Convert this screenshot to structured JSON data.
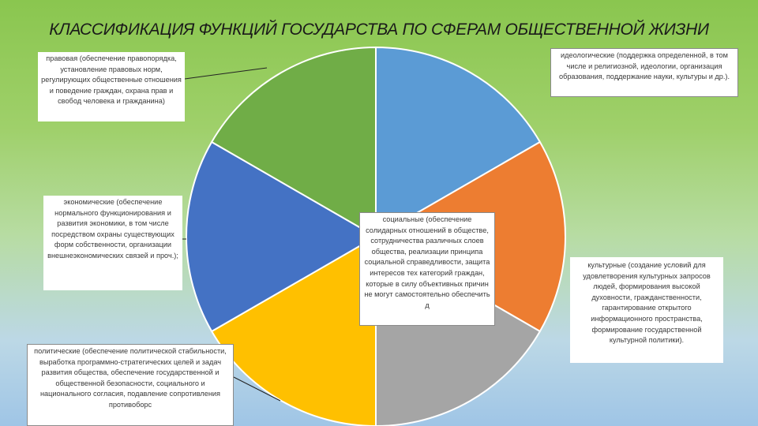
{
  "title": "КЛАССИФИКАЦИЯ ФУНКЦИЙ ГОСУДАРСТВА ПО СФЕРАМ ОБЩЕСТВЕННОЙ ЖИЗНИ",
  "chart_data": {
    "type": "pie",
    "title": "КЛАССИФИКАЦИЯ ФУНКЦИЙ ГОСУДАРСТВА ПО СФЕРАМ ОБЩЕСТВЕННОЙ ЖИЗНИ",
    "start_angle_deg": 0,
    "direction": "clockwise",
    "slices": [
      {
        "label": "идеологические (поддержка определенной, в том числе и религиозной, идеологии, организация образования, поддержание науки, культуры и др.).",
        "value": 1,
        "color": "#5b9bd5"
      },
      {
        "label": "культурные (создание условий для удовлетворения культурных запросов людей, формирования высокой духовности, гражданственности, гарантирование открытого информационного пространства, формирование государственной культурной политики).",
        "value": 1,
        "color": "#ed7d31"
      },
      {
        "label": "социальные (обеспечение солидарных отношений в обществе, сотрудничества различных слоев общества, реализации принципа социальной справедливости, защита интересов тех категорий граждан, которые в силу объективных причин не могут самостоятельно обеспечить д",
        "value": 1,
        "color": "#a5a5a5"
      },
      {
        "label": "политические (обеспечение политической стабильности, выработка программно-стратегических целей и задач развития общества, обеспечение государственной и общественной безопасности, социального и национального согласия, подавление сопротивления противоборс",
        "value": 1,
        "color": "#ffc000"
      },
      {
        "label": "экономические (обеспечение нормального функционирования и развития экономики, в том числе посредством охраны существующих форм собственности, организации внешнеэкономических связей и проч.);",
        "value": 1,
        "color": "#4472c4"
      },
      {
        "label": "правовая (обеспечение правопорядка, установление правовых норм, регулирующих общественные отношения и поведение граждан, охрана прав и свобод человека и гражданина)",
        "value": 1,
        "color": "#70ad47"
      }
    ]
  },
  "labels": {
    "ideo": "идеологические (поддержка определенной, в том числе и религиозной, идеологии, организация образования, поддержание науки, культуры и др.).",
    "kult": "культурные (создание условий для удовлетворения культурных запросов людей, формирования высокой духовности, гражданственности, гарантирование открытого информационного пространства, формирование государственной культурной политики).",
    "soc": "социальные (обеспечение солидарных отношений в обществе, сотрудничества различных слоев общества, реализации принципа социальной справедливости, защита интересов тех категорий граждан, которые в силу объективных причин не могут самостоятельно обеспечить д",
    "polit": "политические (обеспечение политической стабильности, выработка программно-стратегических целей и задач развития общества, обеспечение государственной и общественной безопасности, социального и национального согласия, подавление сопротивления противоборс",
    "econ": "экономические (обеспечение нормального функционирования и развития экономики, в том числе посредством охраны существующих форм собственности, организации внешнеэкономических связей и проч.);",
    "pravo": "правовая (обеспечение правопорядка, установление правовых норм, регулирующих общественные отношения и поведение граждан, охрана прав и свобод человека и гражданина)"
  }
}
